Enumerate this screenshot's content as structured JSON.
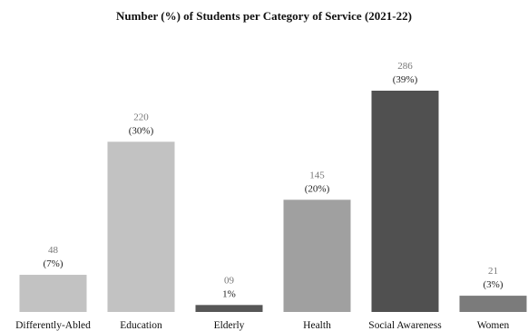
{
  "chart_data": {
    "type": "bar",
    "title": "Number (%) of Students per Category of Service (2021-22)",
    "categories": [
      "Differently-Abled",
      "Education",
      "Elderly",
      "Health",
      "Social Awareness",
      "Women"
    ],
    "values": [
      48,
      220,
      9,
      145,
      286,
      21
    ],
    "value_labels": [
      "48",
      "220",
      "09",
      "145",
      "286",
      "21"
    ],
    "percent_labels": [
      "(7%)",
      "(30%)",
      "1%",
      "(20%)",
      "(39%)",
      "(3%)"
    ],
    "colors": [
      "#c2c2c2",
      "#c2c2c2",
      "#575757",
      "#a0a0a0",
      "#505050",
      "#7b7b7b"
    ],
    "xlabel": "",
    "ylabel": "",
    "ylim": [
      0,
      286
    ],
    "grid": false,
    "legend": "none"
  }
}
